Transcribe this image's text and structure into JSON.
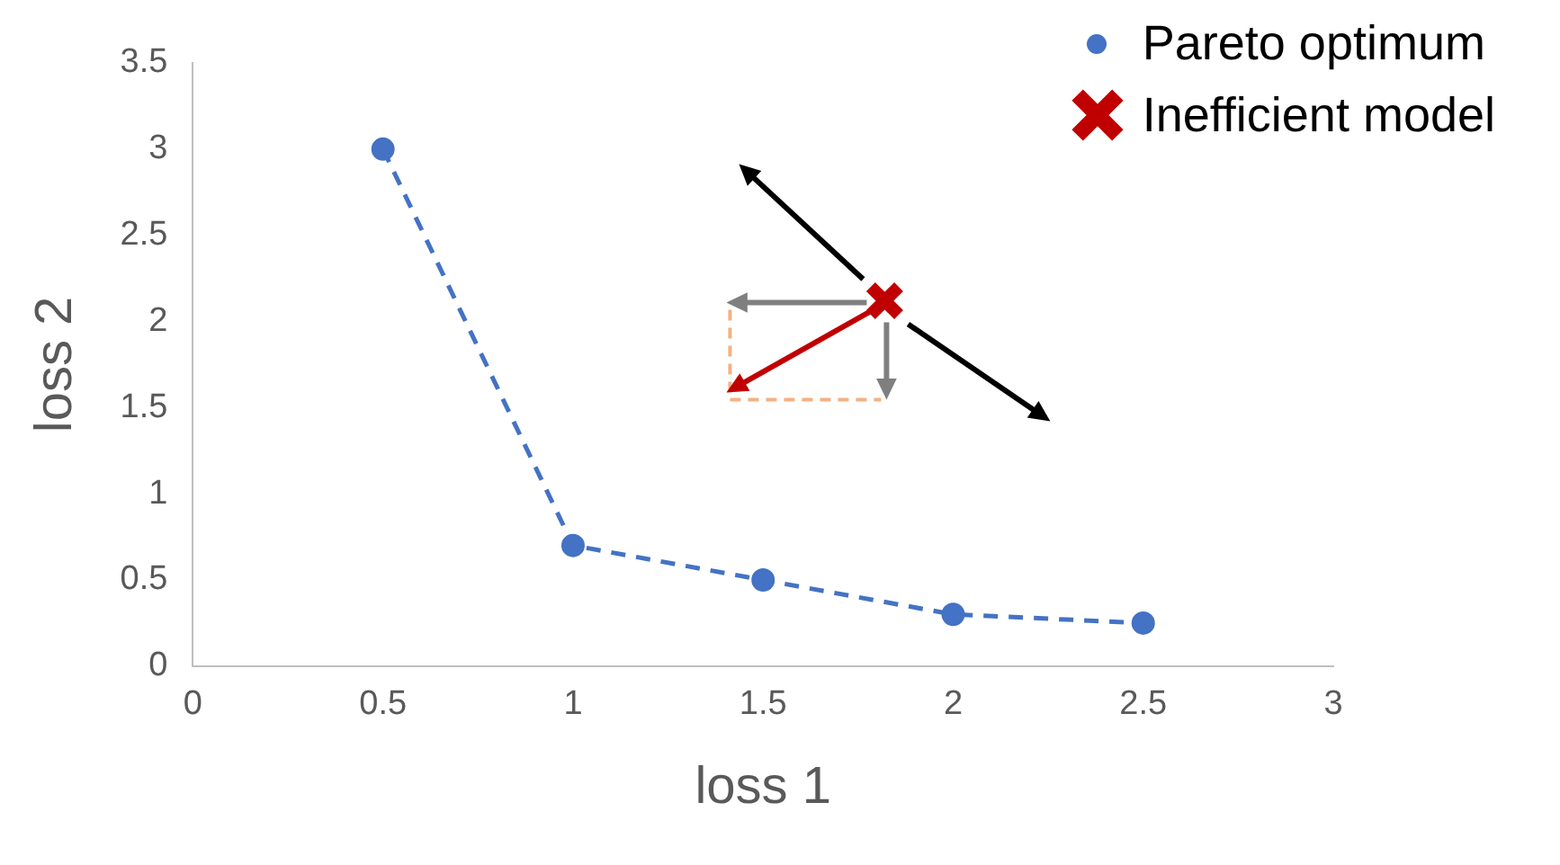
{
  "chart_data": {
    "type": "scatter",
    "xlabel": "loss 1",
    "ylabel": "loss 2",
    "xlim": [
      0,
      3
    ],
    "xticks": [
      0,
      0.5,
      1,
      1.5,
      2,
      2.5,
      3
    ],
    "ylim": [
      0,
      3.5
    ],
    "yticks": [
      0,
      0.5,
      1,
      1.5,
      2,
      2.5,
      3,
      3.5
    ],
    "grid": false,
    "legend": "top right",
    "series": [
      {
        "name": "Pareto optimum",
        "type": "line",
        "color": "#4472c4",
        "marker": "circle",
        "line_style": "dashed",
        "x": [
          0.5,
          1,
          1.5,
          2,
          2.5
        ],
        "values": [
          3,
          0.7,
          0.5,
          0.3,
          0.25
        ]
      },
      {
        "name": "Inefficient model",
        "type": "scatter",
        "color": "#c00000",
        "marker": "cross",
        "x": [
          1.82
        ],
        "values": [
          2.12
        ]
      }
    ]
  }
}
